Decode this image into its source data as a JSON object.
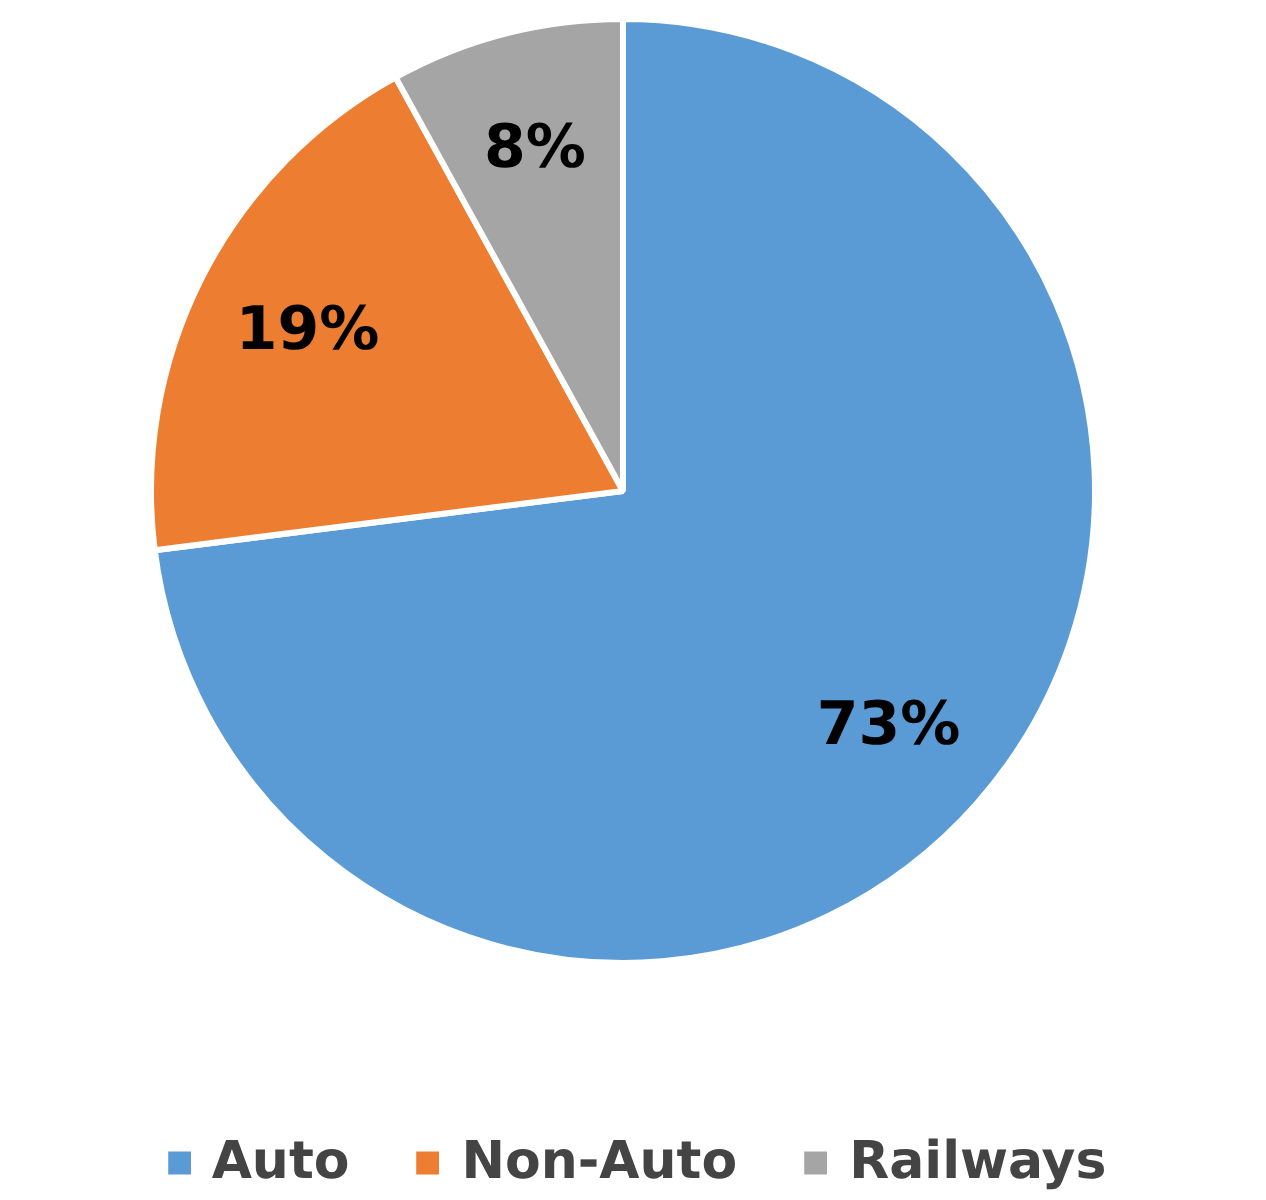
{
  "chart_data": {
    "type": "pie",
    "categories": [
      "Auto",
      "Non-Auto",
      "Railways"
    ],
    "values": [
      73,
      19,
      8
    ],
    "colors": [
      "#5b9bd5",
      "#ed7d31",
      "#a5a5a5"
    ],
    "value_labels": [
      "73%",
      "19%",
      "8%"
    ],
    "legend": "bottom"
  }
}
